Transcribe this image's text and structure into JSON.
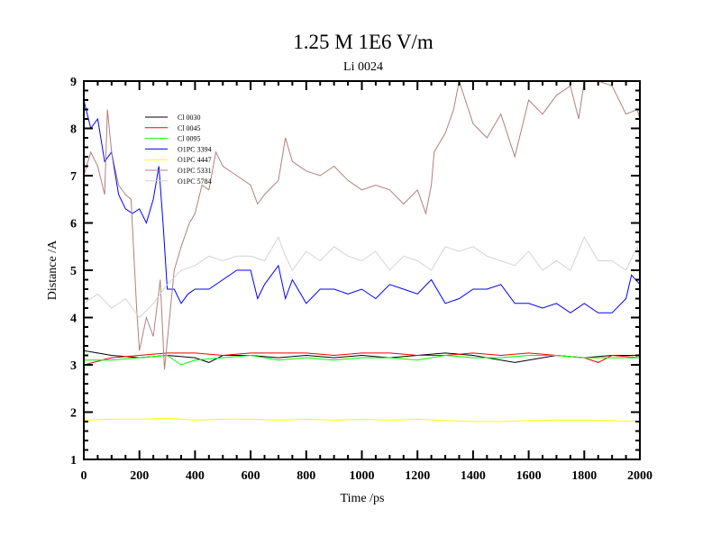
{
  "chart_data": {
    "type": "line",
    "title": "1.25 M 1E6 V/m",
    "subtitle": "Li 0024",
    "xlabel": "Time /ps",
    "ylabel": "Distance /A",
    "xlim": [
      0,
      2000
    ],
    "ylim": [
      1,
      9
    ],
    "xticks": [
      0,
      200,
      400,
      600,
      800,
      1000,
      1200,
      1400,
      1600,
      1800,
      2000
    ],
    "yticks": [
      1,
      2,
      3,
      4,
      5,
      6,
      7,
      8,
      9
    ],
    "grid": false,
    "legend_position": "top-left",
    "series": [
      {
        "name": "Cl 0030",
        "color": "#000000",
        "x": [
          0,
          100,
          200,
          300,
          400,
          450,
          500,
          600,
          700,
          800,
          900,
          1000,
          1100,
          1200,
          1300,
          1400,
          1500,
          1550,
          1600,
          1700,
          1800,
          1900,
          2000
        ],
        "y": [
          3.3,
          3.2,
          3.15,
          3.2,
          3.15,
          3.05,
          3.2,
          3.2,
          3.15,
          3.2,
          3.15,
          3.2,
          3.15,
          3.2,
          3.25,
          3.2,
          3.1,
          3.05,
          3.1,
          3.2,
          3.15,
          3.2,
          3.2
        ]
      },
      {
        "name": "Cl 0045",
        "color": "#ff0000",
        "x": [
          0,
          100,
          200,
          300,
          400,
          500,
          600,
          700,
          800,
          900,
          1000,
          1100,
          1200,
          1300,
          1400,
          1500,
          1600,
          1700,
          1800,
          1850,
          1900,
          2000
        ],
        "y": [
          3.0,
          3.15,
          3.2,
          3.25,
          3.25,
          3.2,
          3.25,
          3.25,
          3.25,
          3.2,
          3.25,
          3.25,
          3.2,
          3.2,
          3.25,
          3.2,
          3.25,
          3.2,
          3.15,
          3.05,
          3.2,
          3.15
        ]
      },
      {
        "name": "Cl 0095",
        "color": "#00ff00",
        "x": [
          0,
          100,
          200,
          300,
          350,
          400,
          500,
          600,
          700,
          800,
          900,
          1000,
          1100,
          1200,
          1300,
          1400,
          1500,
          1600,
          1700,
          1800,
          1900,
          2000
        ],
        "y": [
          3.1,
          3.1,
          3.15,
          3.2,
          3.0,
          3.1,
          3.15,
          3.2,
          3.1,
          3.15,
          3.1,
          3.15,
          3.15,
          3.1,
          3.2,
          3.15,
          3.15,
          3.2,
          3.2,
          3.15,
          3.15,
          3.15
        ]
      },
      {
        "name": "O1PC 3394",
        "color": "#0000ff",
        "x": [
          0,
          25,
          50,
          75,
          100,
          125,
          150,
          175,
          200,
          225,
          250,
          270,
          285,
          300,
          325,
          350,
          375,
          400,
          450,
          500,
          550,
          600,
          625,
          650,
          700,
          725,
          750,
          800,
          850,
          900,
          950,
          1000,
          1050,
          1100,
          1150,
          1200,
          1250,
          1300,
          1350,
          1400,
          1450,
          1500,
          1550,
          1600,
          1650,
          1700,
          1750,
          1800,
          1850,
          1900,
          1950,
          1970,
          2000
        ],
        "y": [
          8.6,
          8.0,
          8.2,
          7.3,
          7.5,
          6.6,
          6.3,
          6.2,
          6.3,
          6.0,
          6.5,
          7.2,
          6.0,
          4.6,
          4.6,
          4.3,
          4.5,
          4.6,
          4.6,
          4.8,
          5.0,
          5.0,
          4.4,
          4.7,
          5.1,
          4.4,
          4.8,
          4.3,
          4.6,
          4.6,
          4.5,
          4.6,
          4.4,
          4.7,
          4.6,
          4.5,
          4.8,
          4.3,
          4.4,
          4.6,
          4.6,
          4.7,
          4.3,
          4.3,
          4.2,
          4.3,
          4.1,
          4.3,
          4.1,
          4.1,
          4.4,
          4.9,
          4.7
        ]
      },
      {
        "name": "O1PC 4447",
        "color": "#ffff00",
        "x": [
          0,
          100,
          200,
          300,
          400,
          500,
          600,
          700,
          800,
          900,
          1000,
          1100,
          1200,
          1300,
          1400,
          1500,
          1600,
          1700,
          1800,
          1900,
          2000
        ],
        "y": [
          1.83,
          1.85,
          1.85,
          1.87,
          1.83,
          1.85,
          1.85,
          1.83,
          1.85,
          1.83,
          1.85,
          1.83,
          1.85,
          1.82,
          1.8,
          1.8,
          1.82,
          1.83,
          1.83,
          1.82,
          1.8
        ]
      },
      {
        "name": "O1PC 5331",
        "color": "#b08080",
        "x": [
          0,
          25,
          50,
          75,
          85,
          100,
          125,
          150,
          170,
          190,
          200,
          225,
          250,
          275,
          290,
          300,
          325,
          350,
          380,
          400,
          425,
          450,
          475,
          500,
          550,
          600,
          625,
          650,
          700,
          725,
          750,
          800,
          850,
          900,
          950,
          1000,
          1050,
          1100,
          1150,
          1200,
          1230,
          1250,
          1260,
          1300,
          1330,
          1350,
          1400,
          1450,
          1500,
          1550,
          1600,
          1650,
          1700,
          1750,
          1780,
          1800,
          1850,
          1900,
          1950,
          1990,
          2000
        ],
        "y": [
          7.0,
          7.5,
          7.2,
          6.6,
          8.4,
          7.5,
          6.8,
          6.6,
          6.5,
          4.2,
          3.3,
          4.0,
          3.6,
          4.8,
          2.9,
          3.5,
          5.0,
          5.5,
          6.0,
          6.2,
          6.8,
          6.7,
          7.5,
          7.2,
          7.0,
          6.8,
          6.4,
          6.6,
          6.9,
          7.8,
          7.3,
          7.1,
          7.0,
          7.2,
          6.9,
          6.7,
          6.8,
          6.7,
          6.4,
          6.7,
          6.2,
          6.8,
          7.5,
          7.9,
          8.4,
          9.0,
          8.1,
          7.8,
          8.3,
          7.4,
          8.6,
          8.3,
          8.7,
          8.9,
          8.2,
          9.0,
          9.0,
          8.9,
          8.3,
          8.4,
          8.2
        ]
      },
      {
        "name": "O1PC 5784",
        "color": "#d3d3d3",
        "x": [
          0,
          50,
          100,
          150,
          200,
          250,
          300,
          350,
          400,
          450,
          500,
          550,
          600,
          650,
          700,
          725,
          750,
          800,
          850,
          900,
          950,
          1000,
          1050,
          1100,
          1150,
          1200,
          1250,
          1300,
          1350,
          1400,
          1450,
          1500,
          1550,
          1600,
          1650,
          1700,
          1750,
          1800,
          1850,
          1900,
          1950,
          1990,
          2000
        ],
        "y": [
          4.3,
          4.5,
          4.2,
          4.4,
          4.0,
          4.3,
          4.7,
          5.0,
          5.1,
          5.3,
          5.2,
          5.3,
          5.3,
          5.2,
          5.7,
          5.3,
          5.0,
          5.4,
          5.2,
          5.5,
          5.3,
          5.2,
          5.4,
          5.0,
          5.3,
          5.2,
          5.0,
          5.5,
          5.4,
          5.5,
          5.3,
          5.2,
          5.1,
          5.4,
          5.0,
          5.2,
          5.0,
          5.7,
          5.2,
          5.2,
          5.0,
          5.5,
          5.2
        ]
      }
    ]
  }
}
